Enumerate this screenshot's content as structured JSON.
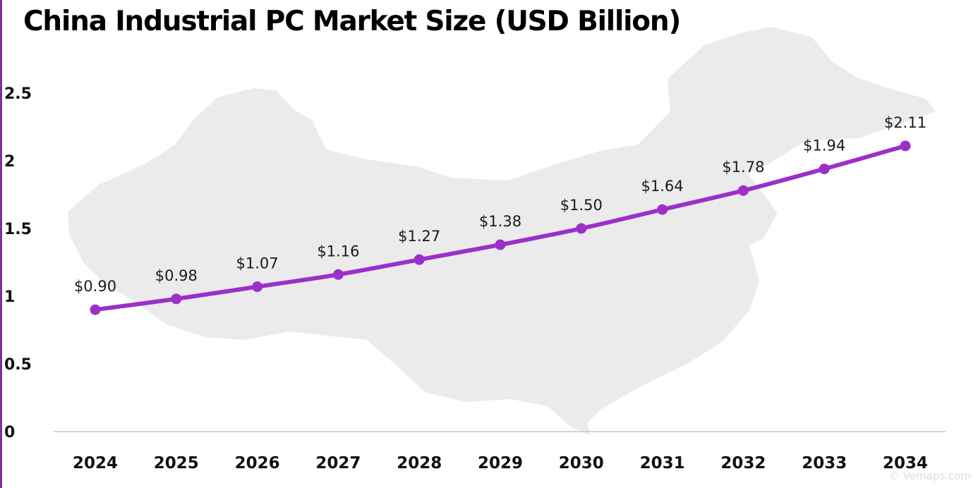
{
  "chart_data": {
    "type": "line",
    "title": "China Industrial PC Market Size (USD Billion)",
    "xlabel": "",
    "ylabel": "",
    "categories": [
      "2024",
      "2025",
      "2026",
      "2027",
      "2028",
      "2029",
      "2030",
      "2031",
      "2032",
      "2033",
      "2034"
    ],
    "series": [
      {
        "name": "Market Size",
        "values": [
          0.9,
          0.98,
          1.07,
          1.16,
          1.27,
          1.38,
          1.5,
          1.64,
          1.78,
          1.94,
          2.11
        ],
        "labels": [
          "$0.90",
          "$0.98",
          "$1.07",
          "$1.16",
          "$1.27",
          "$1.38",
          "$1.50",
          "$1.64",
          "$1.78",
          "$1.94",
          "$2.11"
        ]
      }
    ],
    "ylim": [
      0,
      2.5
    ],
    "yticks": [
      0,
      0.5,
      1,
      1.5,
      2,
      2.5
    ],
    "ytick_labels": [
      "0",
      "0.5",
      "1",
      "1.5",
      "2",
      "2.5"
    ],
    "grid": false,
    "line_color": "#9b30c9",
    "background_map": "china-map-silhouette"
  },
  "watermark": "© Vemaps.com"
}
